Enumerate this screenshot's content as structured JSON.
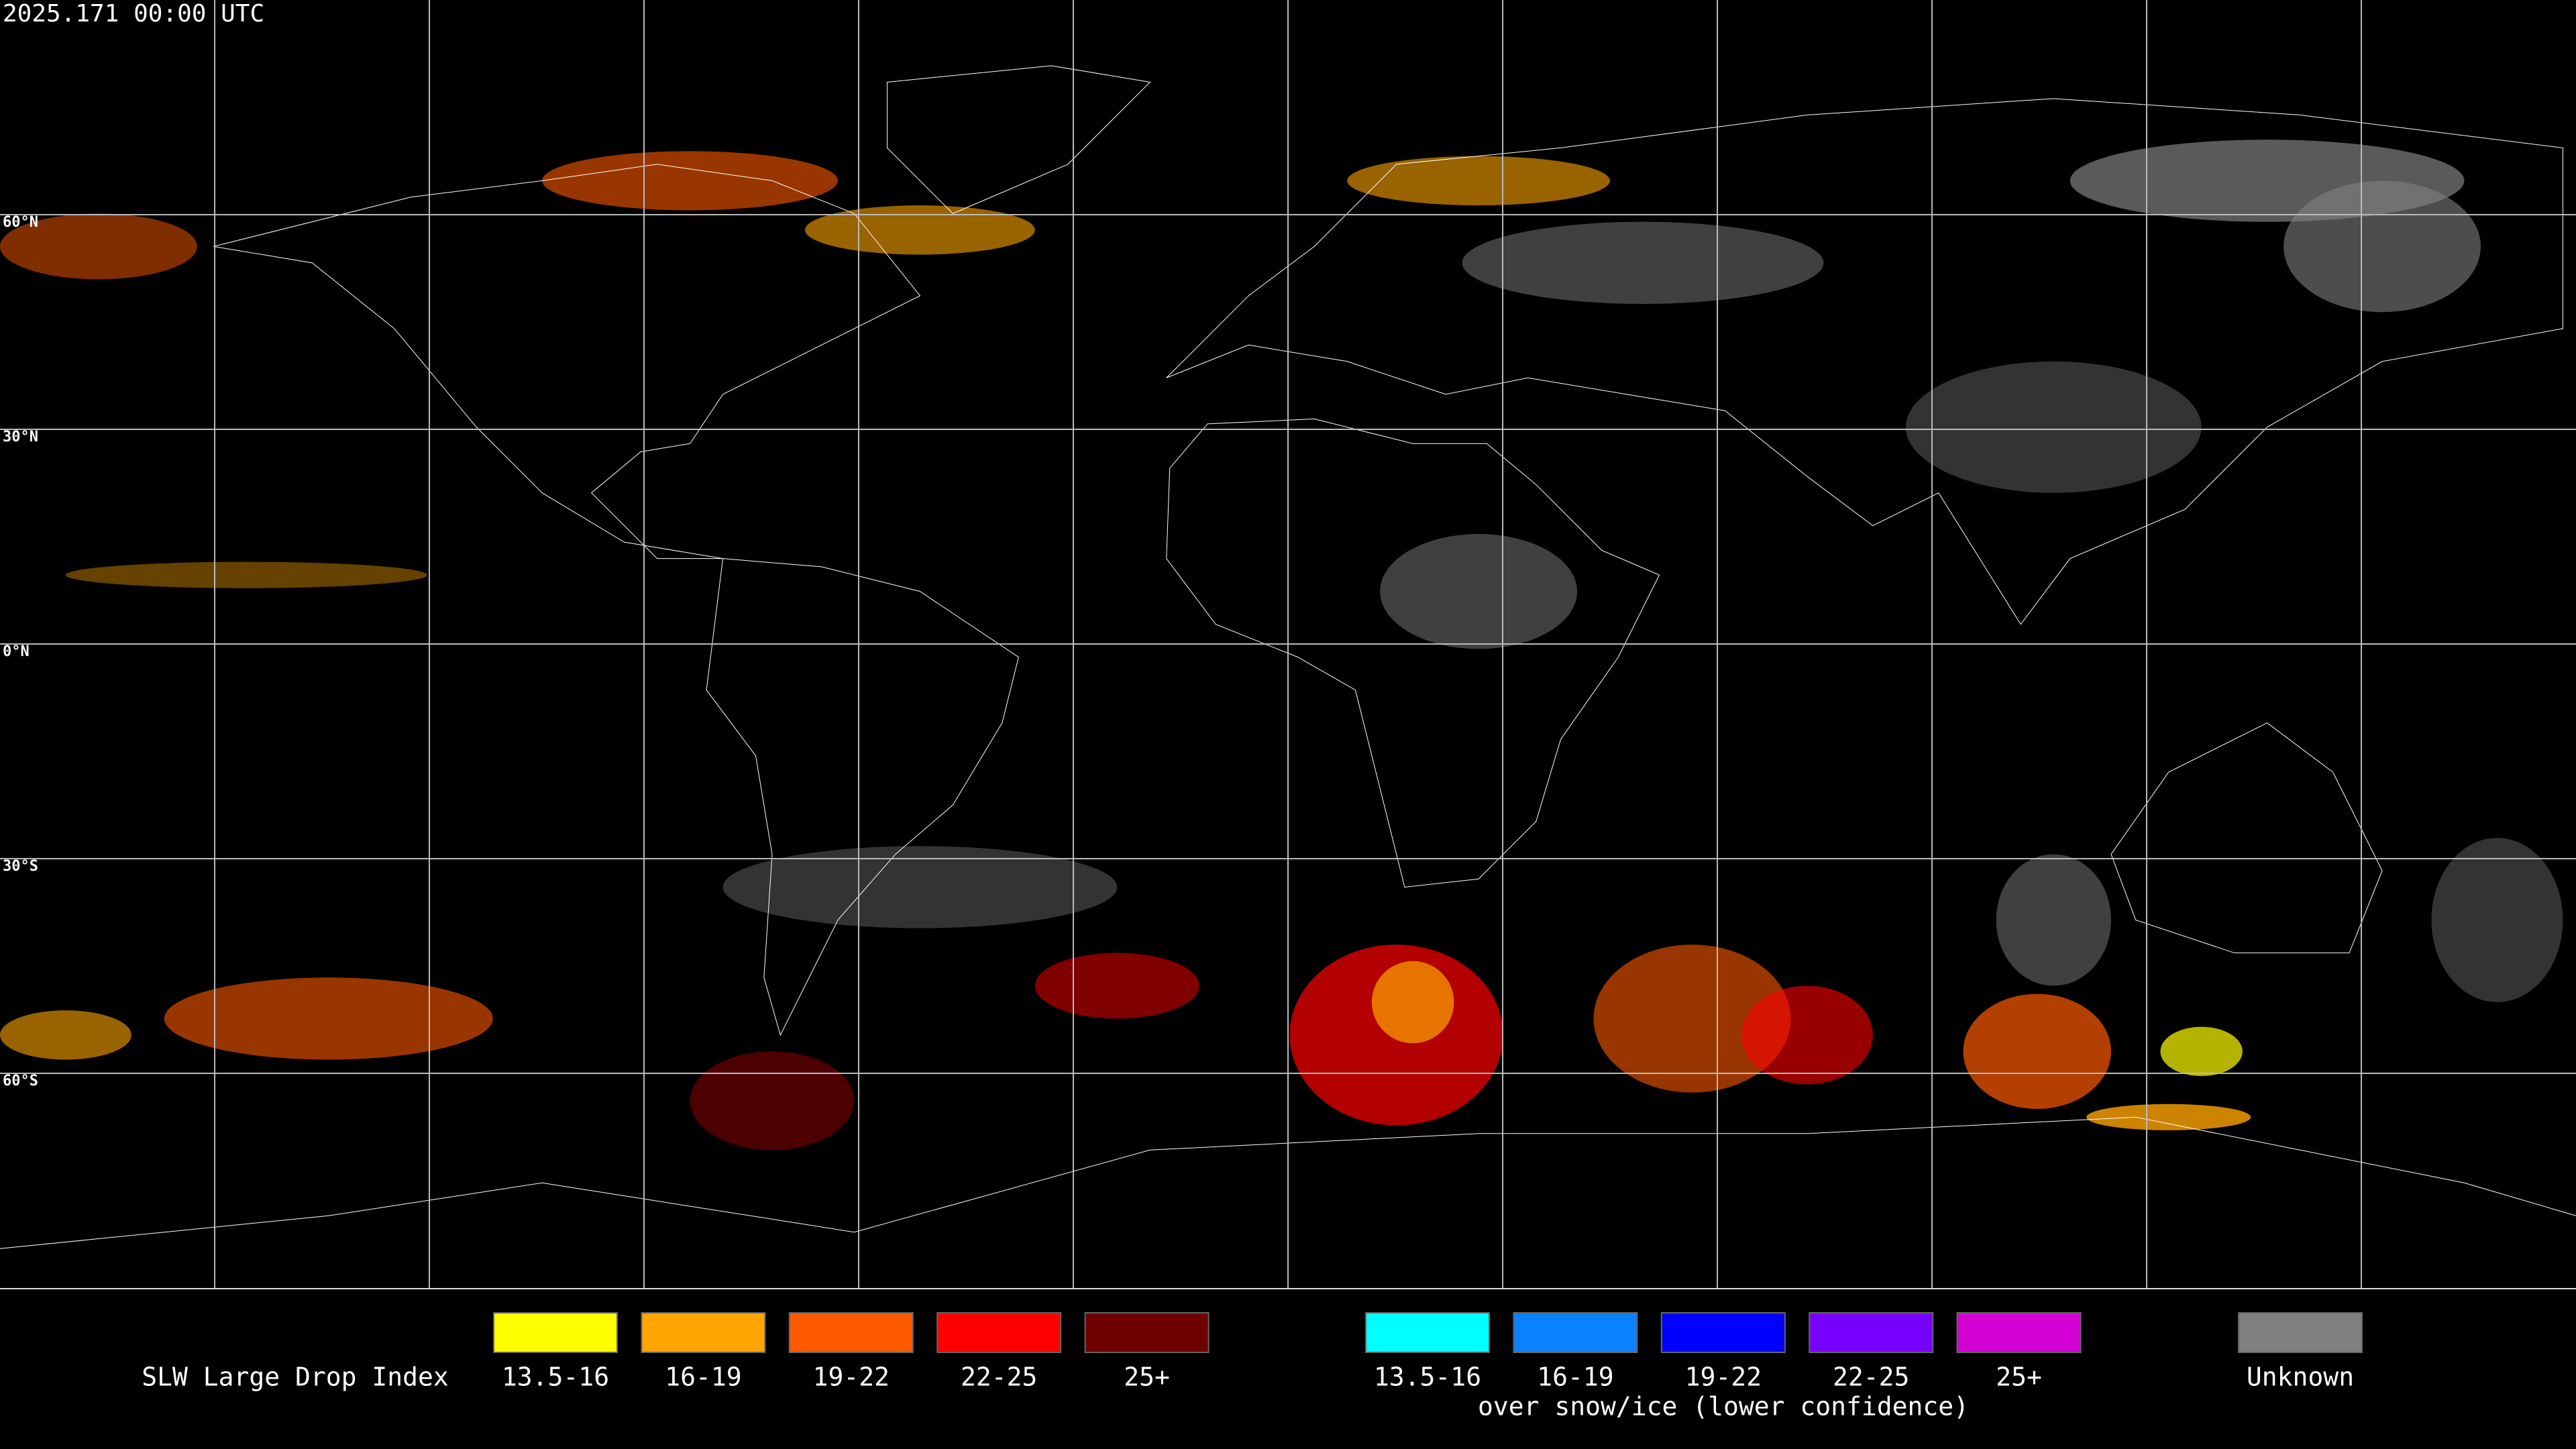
{
  "header": {
    "timestamp": "2025.171 00:00 UTC"
  },
  "map": {
    "lat_labels": [
      "60°N",
      "30°N",
      "0°N",
      "30°S",
      "60°S"
    ]
  },
  "legend": {
    "title": "SLW Large Drop Index",
    "items": [
      {
        "label": "13.5-16",
        "color": "#ffff00"
      },
      {
        "label": "16-19",
        "color": "#ffa500"
      },
      {
        "label": "19-22",
        "color": "#ff5a00"
      },
      {
        "label": "22-25",
        "color": "#ff0000"
      },
      {
        "label": "25+",
        "color": "#6e0000"
      }
    ],
    "snow_items": [
      {
        "label": "13.5-16",
        "color": "#00ffff"
      },
      {
        "label": "16-19",
        "color": "#0a82ff"
      },
      {
        "label": "19-22",
        "color": "#0000ff"
      },
      {
        "label": "22-25",
        "color": "#7800ff"
      },
      {
        "label": "25+",
        "color": "#d200d2"
      }
    ],
    "snow_note": "over snow/ice (lower confidence)",
    "unknown": {
      "label": "Unknown",
      "color": "#808080"
    }
  }
}
